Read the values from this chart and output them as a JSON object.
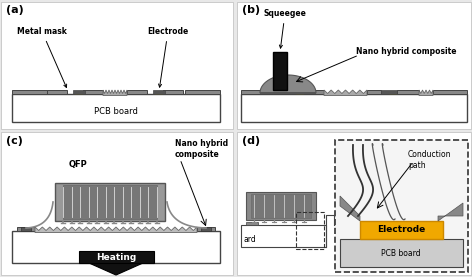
{
  "bg_color": "#e8e8e8",
  "panel_bg": "#ffffff",
  "pcb_color": "#cccccc",
  "pcb_border": "#444444",
  "electrode_color": "#b8962a",
  "electrode_yellow": "#f0a800",
  "metal_mask_color": "#777777",
  "mask_plate_color": "#888888",
  "qfp_body_color": "#999999",
  "qfp_body_dark": "#777777",
  "qfp_lead_color": "#aaaaaa",
  "composite_color": "#888888",
  "squeegee_color": "#111111",
  "heating_color": "#111111",
  "text_color": "#000000",
  "labels": {
    "a": "(a)",
    "b": "(b)",
    "c": "(c)",
    "d": "(d)",
    "metal_mask": "Metal mask",
    "electrode_a": "Electrode",
    "pcb_a": "PCB board",
    "squeegee": "Squeegee",
    "nano_b": "Nano hybrid composite",
    "qfp": "QFP",
    "nano_c": "Nano hybrid\ncomposite",
    "heating": "Heating",
    "ard": "ard",
    "conduction": "Conduction\npath",
    "electrode_d": "Electrode",
    "pcb_d": "PCB board"
  }
}
